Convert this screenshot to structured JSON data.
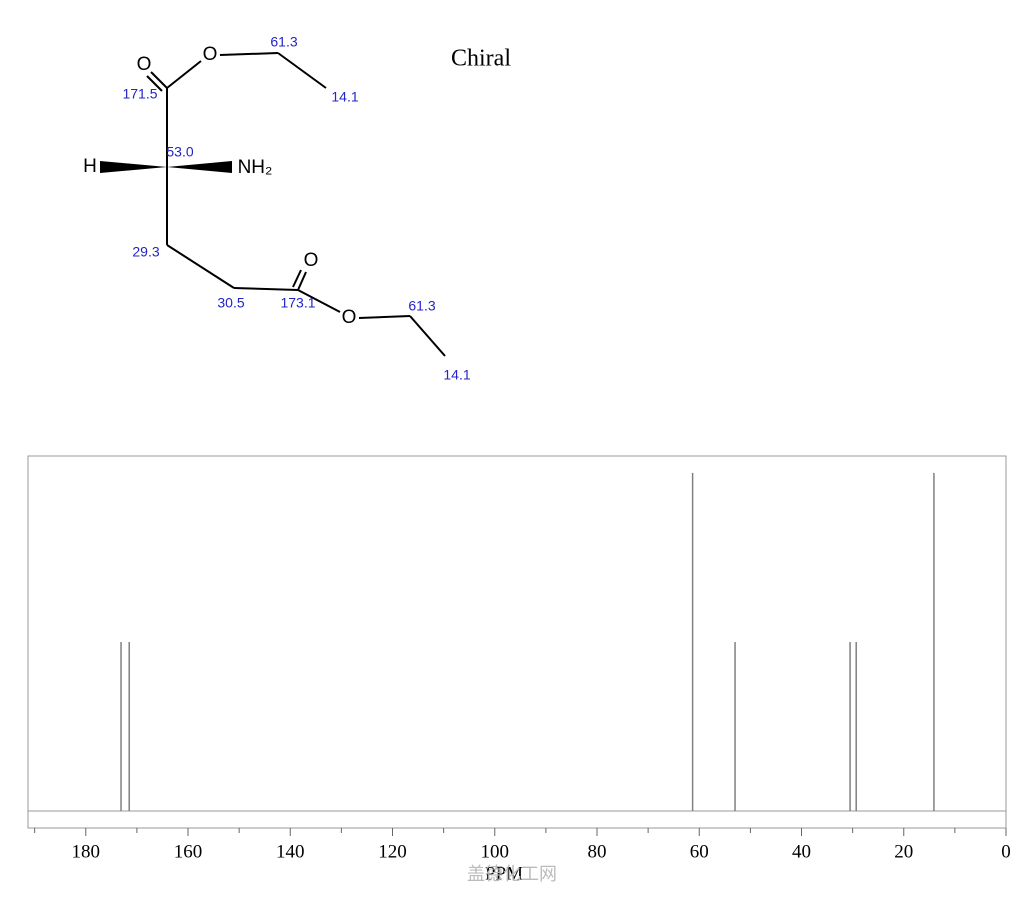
{
  "molecule": {
    "chiral": "Chiral",
    "atoms": [
      "O",
      "O",
      "H",
      "NH₂",
      "O",
      "O"
    ],
    "shifts": [
      "61.3",
      "14.1",
      "171.5",
      "53.0",
      "29.3",
      "30.5",
      "173.1",
      "61.3",
      "14.1"
    ]
  },
  "chart_data": {
    "type": "stem",
    "x_label": "PPM",
    "watermark": "盖德化工网",
    "x": [
      173.1,
      171.5,
      61.3,
      53.0,
      30.5,
      29.3,
      14.1
    ],
    "values": [
      0.5,
      0.5,
      1,
      0.5,
      0.5,
      0.5,
      1
    ],
    "color": "#808080",
    "xlim": [
      191.3,
      0
    ],
    "ylim": [
      0,
      1.05
    ],
    "xticks": [
      180,
      160,
      140,
      120,
      100,
      80,
      60,
      40,
      20,
      0
    ],
    "xminorticks": [
      190,
      170,
      150,
      130,
      110,
      90,
      70,
      50,
      30,
      10
    ]
  }
}
